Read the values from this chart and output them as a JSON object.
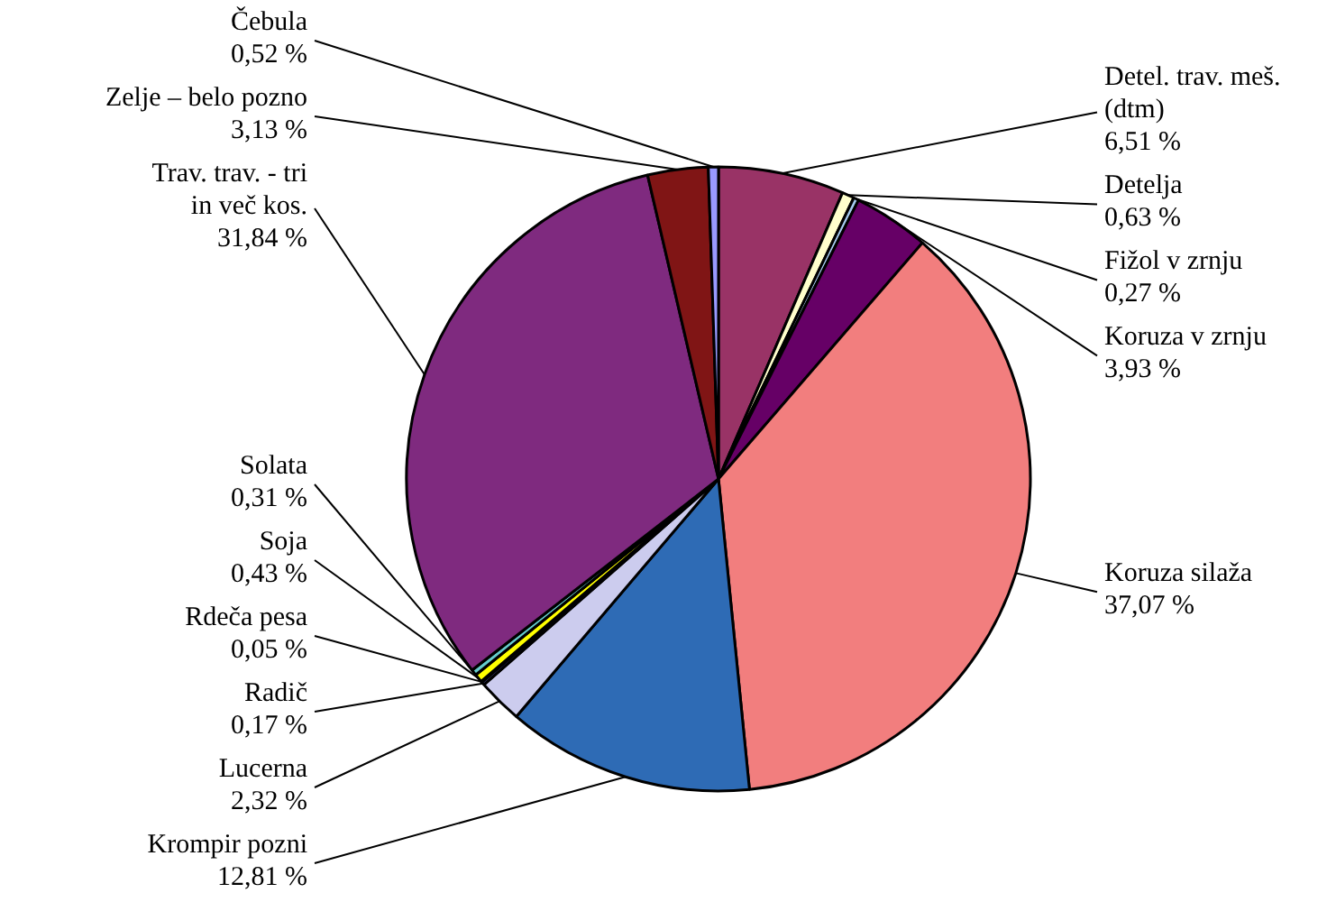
{
  "chart_data": {
    "type": "pie",
    "categories": [
      "Detel. trav. meš. (dtm)",
      "Detelja",
      "Fižol v zrnju",
      "Koruza v zrnju",
      "Koruza silaža",
      "Krompir pozni",
      "Lucerna",
      "Radič",
      "Rdeča pesa",
      "Soja",
      "Solata",
      "Trav. trav. - tri in več kos.",
      "Zelje – belo pozno",
      "Čebula"
    ],
    "values": [
      6.51,
      0.63,
      0.27,
      3.93,
      37.07,
      12.81,
      2.32,
      0.17,
      0.05,
      0.43,
      0.31,
      31.84,
      3.13,
      0.52
    ],
    "colors": [
      "#993366",
      "#ffffcc",
      "#a6caf0",
      "#660066",
      "#f27e7e",
      "#2e6bb5",
      "#ccccee",
      "#3d3d7a",
      "#800040",
      "#ffff00",
      "#66cccc",
      "#7f2a7f",
      "#801515",
      "#9999ff"
    ],
    "value_labels": [
      "6,51 %",
      "0,63 %",
      "0,27 %",
      "3,93 %",
      "37,07 %",
      "12,81 %",
      "2,32 %",
      "0,17 %",
      "0,05 %",
      "0,43 %",
      "0,31 %",
      "31,84 %",
      "3,13 %",
      "0,52 %"
    ]
  }
}
